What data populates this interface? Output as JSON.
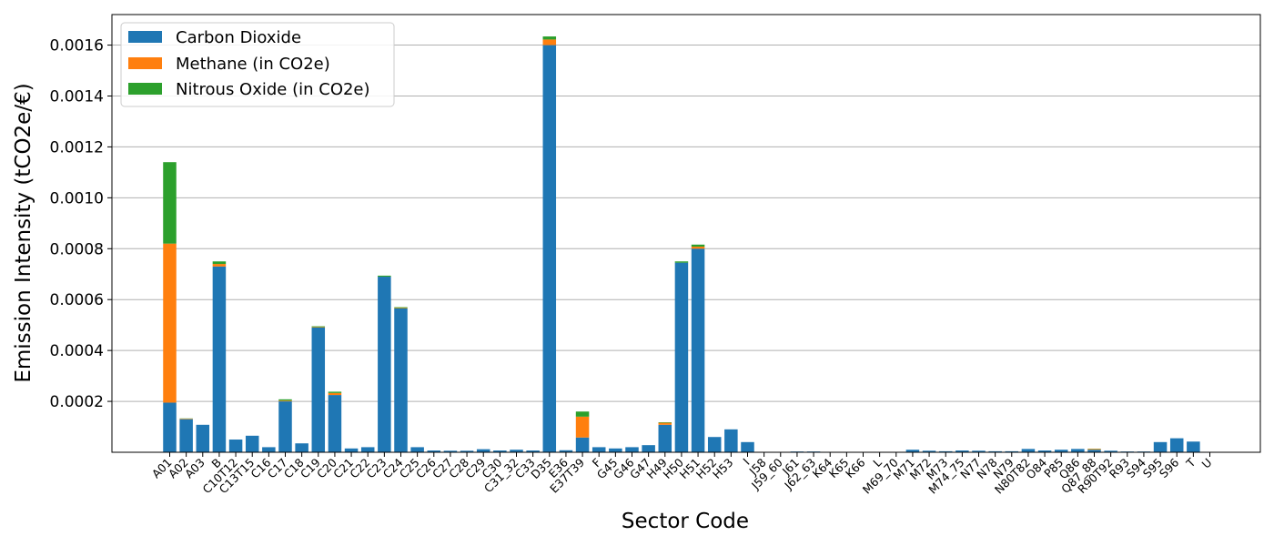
{
  "chart_data": {
    "type": "bar",
    "stacked": true,
    "title": "",
    "xlabel": "Sector Code",
    "ylabel": "Emission Intensity (tCO2e/€)",
    "ylim": [
      0,
      0.00172
    ],
    "yticks": [
      "0.0002",
      "0.0004",
      "0.0006",
      "0.0008",
      "0.0010",
      "0.0012",
      "0.0014",
      "0.0016"
    ],
    "ytick_values": [
      0.0002,
      0.0004,
      0.0006,
      0.0008,
      0.001,
      0.0012,
      0.0014,
      0.0016
    ],
    "grid": "horizontal",
    "legend_position": "top-left",
    "categories": [
      "A01",
      "A02",
      "A03",
      "B",
      "C10T12",
      "C13T15",
      "C16",
      "C17",
      "C18",
      "C19",
      "C20",
      "C21",
      "C22",
      "C23",
      "C24",
      "C25",
      "C26",
      "C27",
      "C28",
      "C29",
      "C30",
      "C31_32",
      "C33",
      "D35",
      "E36",
      "E37T39",
      "F",
      "G45",
      "G46",
      "G47",
      "H49",
      "H50",
      "H51",
      "H52",
      "H53",
      "I",
      "J58",
      "J59_60",
      "J61",
      "J62_63",
      "K64",
      "K65",
      "K66",
      "L",
      "M69_70",
      "M71",
      "M72",
      "M73",
      "M74_75",
      "N77",
      "N78",
      "N79",
      "N80T82",
      "O84",
      "P85",
      "Q86",
      "Q87_88",
      "R90T92",
      "R93",
      "S94",
      "S95",
      "S96",
      "T",
      "U"
    ],
    "series": [
      {
        "name": "Carbon Dioxide",
        "color": "#1f77b4",
        "values": [
          0.000195,
          0.00013,
          0.000108,
          0.00073,
          5e-05,
          6.5e-05,
          2e-05,
          0.0002,
          3.5e-05,
          0.00049,
          0.000225,
          1.5e-05,
          2e-05,
          0.00069,
          0.000565,
          2e-05,
          7e-06,
          6e-06,
          6e-06,
          1.2e-05,
          7e-06,
          1e-05,
          7e-06,
          0.0016,
          8e-06,
          5.8e-05,
          2e-05,
          1.5e-05,
          2e-05,
          2.8e-05,
          0.000108,
          0.000745,
          0.0008,
          6e-05,
          9e-05,
          4e-05,
          0,
          0,
          3e-06,
          3e-06,
          0,
          0,
          0,
          0,
          0,
          1e-05,
          6e-06,
          4e-06,
          7e-06,
          6e-06,
          4e-06,
          4e-06,
          1.3e-05,
          7e-06,
          1e-05,
          1.3e-05,
          1e-05,
          6e-06,
          3e-06,
          3e-06,
          4e-05,
          5.5e-05,
          4.2e-05,
          0
        ]
      },
      {
        "name": "Methane (in CO2e)",
        "color": "#ff7f0e",
        "values": [
          0.000625,
          2e-06,
          0,
          1e-05,
          0,
          0,
          0,
          3e-06,
          0,
          2e-06,
          8e-06,
          0,
          0,
          0,
          2e-06,
          0,
          0,
          0,
          0,
          0,
          0,
          0,
          0,
          2.2e-05,
          0,
          8.2e-05,
          0,
          0,
          0,
          0,
          8e-06,
          0,
          8e-06,
          0,
          0,
          0,
          0,
          0,
          0,
          0,
          0,
          0,
          0,
          0,
          0,
          0,
          0,
          0,
          0,
          0,
          0,
          0,
          0,
          0,
          0,
          0,
          3e-06,
          0,
          0,
          0,
          0,
          0,
          0,
          0
        ]
      },
      {
        "name": "Nitrous Oxide (in CO2e)",
        "color": "#2ca02c",
        "values": [
          0.00032,
          1e-06,
          0,
          1e-05,
          0,
          0,
          0,
          5e-06,
          0,
          3e-06,
          5e-06,
          0,
          0,
          4e-06,
          3e-06,
          0,
          0,
          0,
          0,
          0,
          0,
          0,
          0,
          1.2e-05,
          0,
          2e-05,
          0,
          0,
          0,
          0,
          2e-06,
          5e-06,
          8e-06,
          0,
          0,
          0,
          0,
          0,
          0,
          0,
          0,
          0,
          0,
          0,
          0,
          0,
          0,
          0,
          0,
          0,
          0,
          0,
          0,
          0,
          0,
          0,
          1e-06,
          0,
          0,
          0,
          0,
          0,
          0,
          0
        ]
      }
    ]
  }
}
